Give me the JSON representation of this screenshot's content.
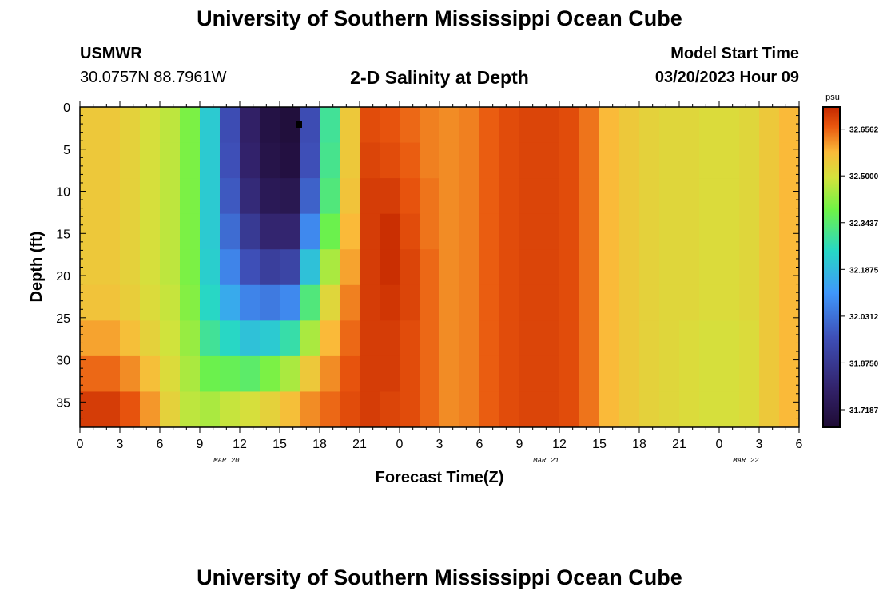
{
  "page": {
    "title": "University of Southern Mississippi Ocean Cube",
    "station_id": "USMWR",
    "coords": "30.0757N  88.7961W",
    "subtitle": "2-D Salinity at Depth",
    "model_start_label": "Model Start Time",
    "model_start_value": "03/20/2023 Hour 09",
    "bottom_title": "University of Southern Mississippi Ocean Cube"
  },
  "chart_data": {
    "type": "heatmap",
    "title": "2-D Salinity at Depth",
    "xlabel": "Forecast Time(Z)",
    "ylabel": "Depth (ft)",
    "x_tick_labels": [
      "0",
      "3",
      "6",
      "9",
      "12",
      "15",
      "18",
      "21",
      "0",
      "3",
      "6",
      "9",
      "12",
      "15",
      "18",
      "21",
      "0",
      "3",
      "6"
    ],
    "x_day_labels": [
      {
        "label": "MAR 20",
        "at_hour": 11
      },
      {
        "label": "MAR 21",
        "at_hour": 35
      },
      {
        "label": "MAR 22",
        "at_hour": 50
      }
    ],
    "xlim_hours": [
      0,
      54
    ],
    "y_tick_labels": [
      "0",
      "5",
      "10",
      "15",
      "20",
      "25",
      "30",
      "35"
    ],
    "ylim": [
      38,
      0
    ],
    "colorbar": {
      "unit": "psu",
      "ticks": [
        "32.6562",
        "32.5000",
        "32.3437",
        "32.1875",
        "32.0312",
        "31.8750",
        "31.7187"
      ],
      "min": 31.66,
      "max": 32.73
    },
    "values_psu": [
      [
        32.55,
        32.55,
        32.55,
        32.55,
        32.55,
        32.56,
        32.6,
        32.65,
        32.7
      ],
      [
        32.55,
        32.55,
        32.55,
        32.55,
        32.55,
        32.56,
        32.6,
        32.65,
        32.7
      ],
      [
        32.53,
        32.53,
        32.53,
        32.53,
        32.53,
        32.54,
        32.57,
        32.62,
        32.67
      ],
      [
        32.5,
        32.5,
        32.5,
        32.5,
        32.5,
        32.51,
        32.53,
        32.57,
        32.61
      ],
      [
        32.47,
        32.47,
        32.47,
        32.47,
        32.47,
        32.48,
        32.49,
        32.51,
        32.53
      ],
      [
        32.4,
        32.4,
        32.4,
        32.4,
        32.4,
        32.41,
        32.43,
        32.45,
        32.47
      ],
      [
        32.22,
        32.22,
        32.22,
        32.22,
        32.23,
        32.25,
        32.3,
        32.38,
        32.45
      ],
      [
        31.95,
        31.96,
        31.98,
        32.02,
        32.07,
        32.15,
        32.25,
        32.37,
        32.48
      ],
      [
        31.78,
        31.79,
        31.82,
        31.88,
        31.96,
        32.07,
        32.2,
        32.35,
        32.5
      ],
      [
        31.7,
        31.71,
        31.74,
        31.8,
        31.9,
        32.05,
        32.22,
        32.4,
        32.53
      ],
      [
        31.68,
        31.69,
        31.73,
        31.8,
        31.92,
        32.08,
        32.28,
        32.45,
        32.57
      ],
      [
        31.95,
        31.96,
        32.0,
        32.08,
        32.2,
        32.33,
        32.45,
        32.55,
        32.62
      ],
      [
        32.3,
        32.31,
        32.33,
        32.38,
        32.45,
        32.52,
        32.58,
        32.62,
        32.65
      ],
      [
        32.55,
        32.55,
        32.56,
        32.58,
        32.6,
        32.63,
        32.65,
        32.67,
        32.68
      ],
      [
        32.68,
        32.69,
        32.7,
        32.7,
        32.7,
        32.7,
        32.7,
        32.7,
        32.7
      ],
      [
        32.67,
        32.68,
        32.7,
        32.72,
        32.72,
        32.71,
        32.7,
        32.7,
        32.69
      ],
      [
        32.65,
        32.66,
        32.67,
        32.68,
        32.69,
        32.69,
        32.68,
        32.68,
        32.68
      ],
      [
        32.63,
        32.63,
        32.64,
        32.64,
        32.65,
        32.65,
        32.65,
        32.65,
        32.65
      ],
      [
        32.62,
        32.62,
        32.62,
        32.62,
        32.62,
        32.62,
        32.62,
        32.62,
        32.62
      ],
      [
        32.63,
        32.63,
        32.63,
        32.63,
        32.63,
        32.63,
        32.63,
        32.63,
        32.63
      ],
      [
        32.66,
        32.66,
        32.66,
        32.66,
        32.66,
        32.66,
        32.66,
        32.66,
        32.66
      ],
      [
        32.68,
        32.68,
        32.68,
        32.68,
        32.68,
        32.68,
        32.68,
        32.68,
        32.68
      ],
      [
        32.69,
        32.69,
        32.69,
        32.69,
        32.69,
        32.69,
        32.69,
        32.69,
        32.69
      ],
      [
        32.69,
        32.69,
        32.69,
        32.69,
        32.69,
        32.69,
        32.69,
        32.69,
        32.69
      ],
      [
        32.68,
        32.68,
        32.68,
        32.68,
        32.68,
        32.68,
        32.68,
        32.68,
        32.68
      ],
      [
        32.64,
        32.64,
        32.64,
        32.64,
        32.64,
        32.64,
        32.64,
        32.64,
        32.64
      ],
      [
        32.58,
        32.58,
        32.58,
        32.58,
        32.58,
        32.58,
        32.58,
        32.58,
        32.58
      ],
      [
        32.55,
        32.55,
        32.55,
        32.55,
        32.55,
        32.55,
        32.55,
        32.55,
        32.55
      ],
      [
        32.53,
        32.53,
        32.53,
        32.53,
        32.53,
        32.53,
        32.53,
        32.53,
        32.53
      ],
      [
        32.52,
        32.52,
        32.52,
        32.52,
        32.52,
        32.52,
        32.52,
        32.52,
        32.52
      ],
      [
        32.52,
        32.52,
        32.52,
        32.52,
        32.52,
        32.52,
        32.51,
        32.51,
        32.51
      ],
      [
        32.51,
        32.51,
        32.51,
        32.51,
        32.51,
        32.51,
        32.5,
        32.5,
        32.5
      ],
      [
        32.51,
        32.51,
        32.51,
        32.51,
        32.51,
        32.51,
        32.5,
        32.5,
        32.5
      ],
      [
        32.52,
        32.52,
        32.52,
        32.52,
        32.52,
        32.52,
        32.51,
        32.51,
        32.51
      ],
      [
        32.55,
        32.55,
        32.55,
        32.55,
        32.55,
        32.55,
        32.55,
        32.55,
        32.55
      ],
      [
        32.58,
        32.58,
        32.58,
        32.58,
        32.58,
        32.58,
        32.58,
        32.58,
        32.58
      ]
    ]
  }
}
